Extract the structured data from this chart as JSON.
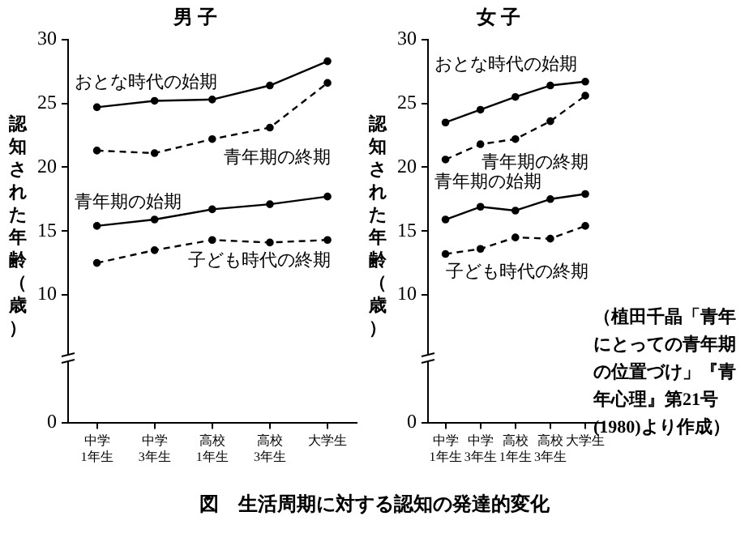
{
  "chart_data": [
    {
      "type": "line",
      "title": "男 子",
      "ylabel": "認知された年齢（歳）",
      "categories": [
        "中学\n1年生",
        "中学\n3年生",
        "高校\n1年生",
        "高校\n3年生",
        "大学生"
      ],
      "series": [
        {
          "name": "おとな時代の始期",
          "color": "#000000",
          "line_style": "solid",
          "values": [
            24.7,
            25.2,
            25.3,
            26.4,
            28.3
          ]
        },
        {
          "name": "青年期の終期",
          "color": "#000000",
          "line_style": "dashed",
          "values": [
            21.3,
            21.1,
            22.2,
            23.1,
            26.6
          ]
        },
        {
          "name": "青年期の始期",
          "color": "#000000",
          "line_style": "solid",
          "values": [
            15.4,
            15.9,
            16.7,
            17.1,
            17.7
          ]
        },
        {
          "name": "子ども時代の終期",
          "color": "#000000",
          "line_style": "dashed",
          "values": [
            12.5,
            13.5,
            14.3,
            14.1,
            14.3
          ]
        }
      ],
      "ylim": [
        0,
        30
      ],
      "yticks": [
        0,
        10,
        15,
        20,
        25,
        30
      ],
      "marker": "circle"
    },
    {
      "type": "line",
      "title": "女 子",
      "ylabel": "認知された年齢（歳）",
      "categories": [
        "中学\n1年生",
        "中学\n3年生",
        "高校\n1年生",
        "高校\n3年生",
        "大学生"
      ],
      "series": [
        {
          "name": "おとな時代の始期",
          "color": "#000000",
          "line_style": "solid",
          "values": [
            23.5,
            24.5,
            25.5,
            26.4,
            26.7
          ]
        },
        {
          "name": "青年期の終期",
          "color": "#000000",
          "line_style": "dashed",
          "values": [
            20.6,
            21.8,
            22.2,
            23.6,
            25.6
          ]
        },
        {
          "name": "青年期の始期",
          "color": "#000000",
          "line_style": "solid",
          "values": [
            15.9,
            16.9,
            16.6,
            17.5,
            17.9
          ]
        },
        {
          "name": "子ども時代の終期",
          "color": "#000000",
          "line_style": "dashed",
          "values": [
            13.2,
            13.6,
            14.5,
            14.4,
            15.4
          ]
        }
      ],
      "ylim": [
        0,
        30
      ],
      "yticks": [
        0,
        10,
        15,
        20,
        25,
        30
      ],
      "marker": "circle"
    },
    {
      "type": "other",
      "title": "図　生活周期に対する認知の発達的変化",
      "annotations": [
        "（植田千晶「青年にとっての青年期の位置づけ」『青年心理』第21号(1980)より作成）"
      ]
    }
  ]
}
